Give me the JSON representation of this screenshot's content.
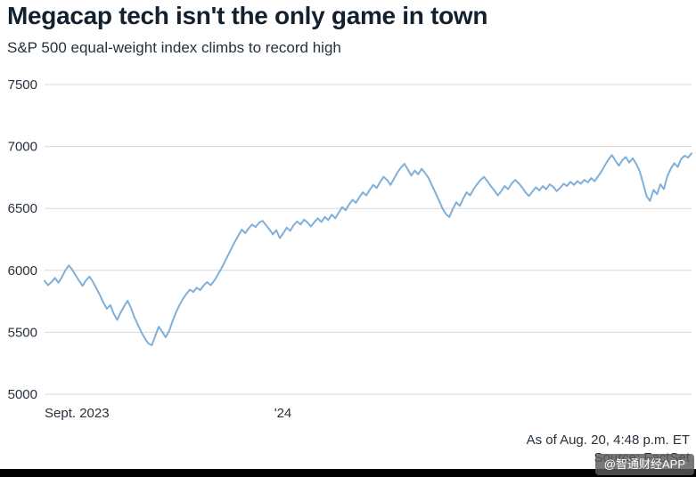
{
  "header": {
    "title": "Megacap tech isn't the only game in town",
    "subtitle": "S&P 500 equal-weight index climbs to record high"
  },
  "footer": {
    "as_of": "As of Aug. 20, 4:48 p.m. ET",
    "source": "Source: FactSet"
  },
  "watermark": "@智通财经APP",
  "colors": {
    "line": "#7fb0d9",
    "grid": "#d9d9d9",
    "text": "#25313d",
    "title": "#13202e"
  },
  "chart_data": {
    "type": "line",
    "title": "Megacap tech isn't the only game in town",
    "subtitle": "S&P 500 equal-weight index climbs to record high",
    "xlabel": "",
    "ylabel": "",
    "ylim": [
      5000,
      7500
    ],
    "y_ticks": [
      5000,
      5500,
      6000,
      6500,
      7000,
      7500
    ],
    "x_ticks": [
      {
        "label": "Sept. 2023",
        "pos": 0.0,
        "anchor": "start"
      },
      {
        "label": "'24",
        "pos": 0.355,
        "anchor": "start"
      }
    ],
    "grid": "horizontal",
    "legend": "none",
    "series": [
      {
        "name": "S&P 500 equal-weight index",
        "color": "#7fb0d9",
        "values": [
          5915,
          5880,
          5905,
          5940,
          5900,
          5945,
          6000,
          6040,
          6005,
          5960,
          5915,
          5875,
          5920,
          5950,
          5905,
          5855,
          5800,
          5740,
          5690,
          5720,
          5650,
          5600,
          5660,
          5710,
          5755,
          5695,
          5620,
          5560,
          5500,
          5450,
          5410,
          5395,
          5470,
          5545,
          5505,
          5460,
          5510,
          5590,
          5660,
          5720,
          5770,
          5810,
          5845,
          5825,
          5860,
          5840,
          5880,
          5905,
          5880,
          5915,
          5960,
          6010,
          6065,
          6120,
          6175,
          6230,
          6280,
          6330,
          6300,
          6340,
          6370,
          6350,
          6385,
          6400,
          6365,
          6330,
          6290,
          6325,
          6260,
          6300,
          6345,
          6320,
          6365,
          6395,
          6370,
          6410,
          6385,
          6355,
          6390,
          6420,
          6390,
          6430,
          6405,
          6450,
          6420,
          6465,
          6510,
          6485,
          6530,
          6570,
          6545,
          6590,
          6630,
          6605,
          6650,
          6690,
          6665,
          6715,
          6755,
          6730,
          6690,
          6740,
          6790,
          6830,
          6860,
          6815,
          6765,
          6805,
          6775,
          6820,
          6785,
          6745,
          6685,
          6625,
          6565,
          6500,
          6455,
          6430,
          6495,
          6550,
          6520,
          6580,
          6630,
          6605,
          6655,
          6695,
          6730,
          6755,
          6720,
          6680,
          6645,
          6605,
          6640,
          6680,
          6655,
          6700,
          6730,
          6705,
          6670,
          6630,
          6600,
          6635,
          6670,
          6645,
          6680,
          6655,
          6695,
          6675,
          6640,
          6665,
          6700,
          6680,
          6715,
          6690,
          6720,
          6700,
          6730,
          6710,
          6745,
          6720,
          6760,
          6800,
          6850,
          6895,
          6930,
          6885,
          6845,
          6890,
          6915,
          6870,
          6905,
          6860,
          6800,
          6705,
          6600,
          6560,
          6650,
          6615,
          6695,
          6655,
          6760,
          6820,
          6865,
          6835,
          6900,
          6925,
          6910,
          6945
        ]
      }
    ]
  }
}
